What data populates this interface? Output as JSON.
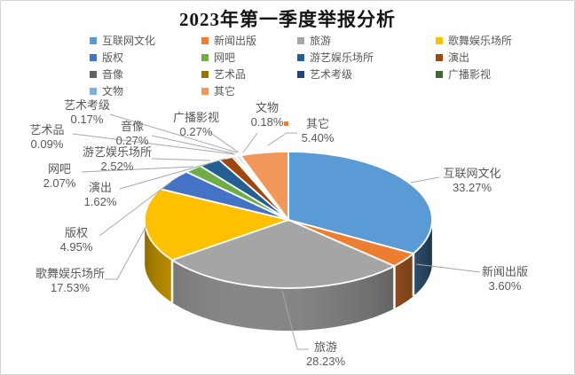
{
  "chart_data": {
    "type": "pie",
    "style": "3d-pie",
    "title": "2023年第一季度举报分析",
    "legend_position": "top",
    "value_suffix": "%",
    "categories": [
      "互联网文化",
      "新闻出版",
      "旅游",
      "歌舞娱乐场所",
      "版权",
      "网吧",
      "游艺娱乐场所",
      "演出",
      "音像",
      "艺术品",
      "艺术考级",
      "广播影视",
      "文物",
      "其它"
    ],
    "values": [
      33.27,
      3.6,
      28.23,
      17.53,
      4.95,
      2.07,
      2.52,
      1.62,
      0.27,
      0.09,
      0.17,
      0.27,
      0.18,
      5.4
    ],
    "colors": [
      "#5B9BD5",
      "#ED7D31",
      "#A5A5A5",
      "#FFC000",
      "#4472C4",
      "#70AD47",
      "#255E91",
      "#9E480E",
      "#636363",
      "#997300",
      "#264478",
      "#43682B",
      "#7CAFDD",
      "#F1975A"
    ],
    "label_format": "{name} {value}%",
    "leader_line_color": "#A8A8A8",
    "label_text_color": "#595959",
    "callout_marker_color": "#ED7D31"
  }
}
